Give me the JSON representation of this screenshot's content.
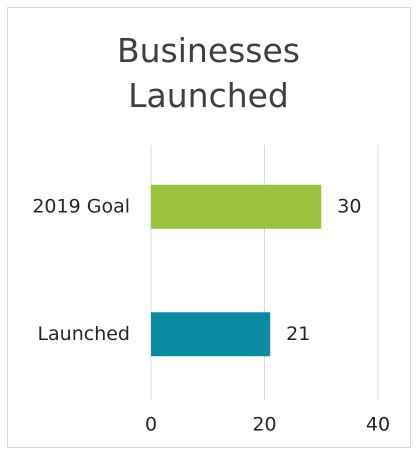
{
  "chart_data": {
    "type": "bar",
    "orientation": "horizontal",
    "title": "Businesses Launched",
    "categories": [
      "2019 Goal",
      "Launched"
    ],
    "values": [
      30,
      21
    ],
    "colors": [
      "#9bc23c",
      "#0c8aa2"
    ],
    "xlim": [
      0,
      40
    ],
    "xticks": [
      0,
      20,
      40
    ],
    "grid": true
  }
}
